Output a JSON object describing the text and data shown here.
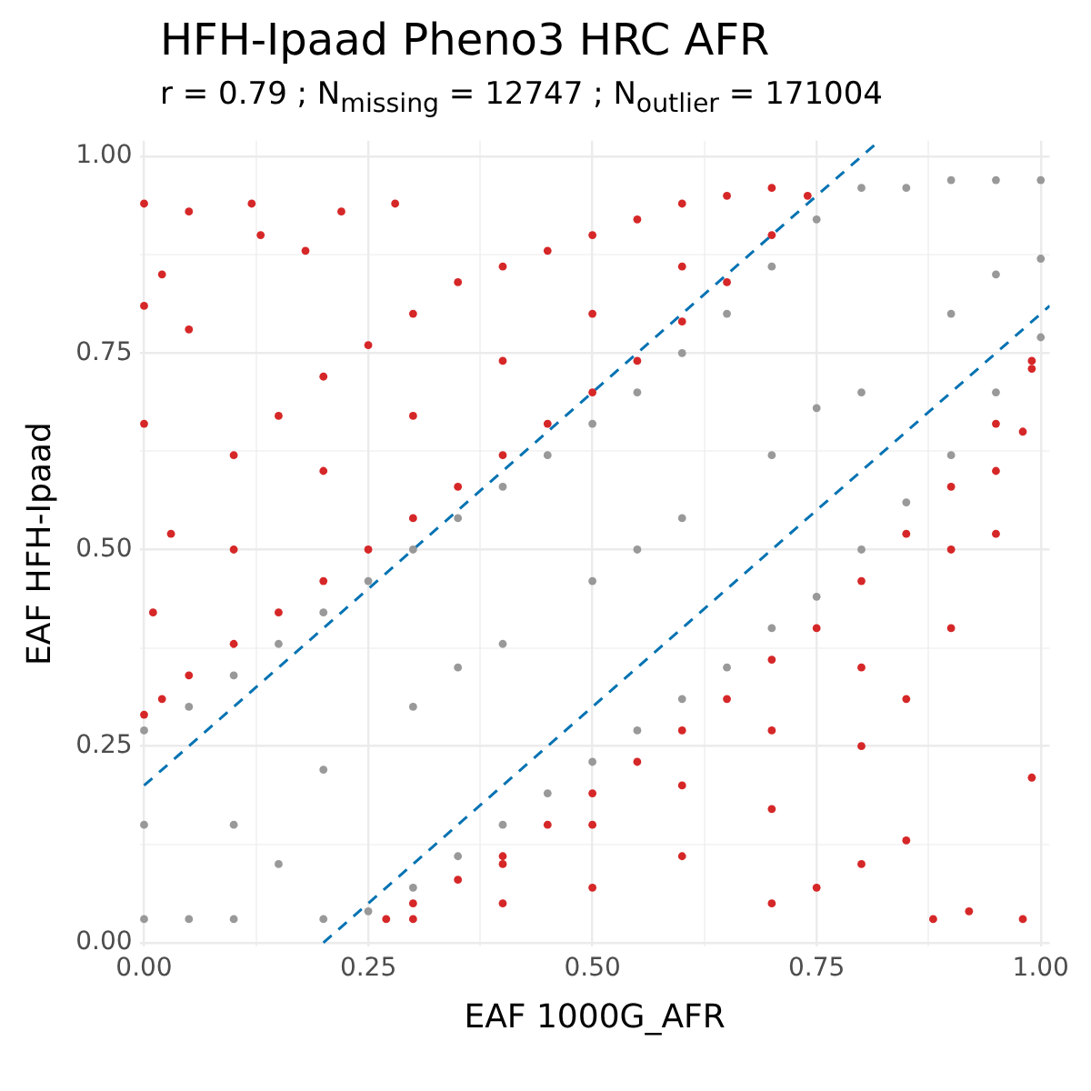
{
  "chart_data": {
    "type": "scatter",
    "title": "HFH-Ipaad Pheno3 HRC AFR",
    "subtitle": "r = 0.79 ; N$_{missing}$ = 12747 ; N$_{outlier}$ = 171004",
    "xlabel": "EAF 1000G_AFR",
    "ylabel": "EAF HFH-Ipaad",
    "xlim": [
      -0.005,
      1.01
    ],
    "ylim": [
      -0.005,
      1.02
    ],
    "xticks": [
      {
        "value": 0,
        "label": "0.00"
      },
      {
        "value": 0.125,
        "label": null
      },
      {
        "value": 0.25,
        "label": "0.25"
      },
      {
        "value": 0.375,
        "label": null
      },
      {
        "value": 0.5,
        "label": "0.50"
      },
      {
        "value": 0.625,
        "label": null
      },
      {
        "value": 0.75,
        "label": "0.75"
      },
      {
        "value": 0.875,
        "label": null
      },
      {
        "value": 1,
        "label": "1.00"
      }
    ],
    "yticks": [
      {
        "value": 0,
        "label": "0.00"
      },
      {
        "value": 0.125,
        "label": null
      },
      {
        "value": 0.25,
        "label": "0.25"
      },
      {
        "value": 0.375,
        "label": null
      },
      {
        "value": 0.5,
        "label": "0.50"
      },
      {
        "value": 0.625,
        "label": null
      },
      {
        "value": 0.75,
        "label": "0.75"
      },
      {
        "value": 0.875,
        "label": null
      },
      {
        "value": 1,
        "label": "1.00"
      }
    ],
    "grid": true,
    "legend": false,
    "marker": "circle",
    "series": [
      {
        "color": "#d62728",
        "x": [
          0,
          0.02,
          0.05,
          0.1,
          0.15,
          0.2,
          0.25,
          0.3,
          0.35,
          0.4,
          0.45,
          0.5,
          0.55,
          0.6,
          0.65,
          0.7,
          0.74,
          0.01,
          0.03,
          0.1,
          0.15,
          0.2,
          0.25,
          0.3,
          0.35,
          0.4,
          0.45,
          0.5,
          0.55,
          0.6,
          0.65,
          0.7,
          0.1,
          0.2,
          0.3,
          0.4,
          0.5,
          0.6,
          0,
          0.05,
          0.12,
          0,
          0,
          0.13,
          0.02,
          0.22,
          0.28,
          0.05,
          0.18
        ],
        "values": [
          0.29,
          0.31,
          0.34,
          0.38,
          0.42,
          0.46,
          0.5,
          0.54,
          0.58,
          0.62,
          0.66,
          0.7,
          0.74,
          0.79,
          0.84,
          0.9,
          0.95,
          0.42,
          0.52,
          0.62,
          0.67,
          0.72,
          0.76,
          0.8,
          0.84,
          0.86,
          0.88,
          0.9,
          0.92,
          0.94,
          0.95,
          0.96,
          0.5,
          0.6,
          0.67,
          0.74,
          0.8,
          0.86,
          0.94,
          0.93,
          0.94,
          0.81,
          0.66,
          0.9,
          0.85,
          0.93,
          0.94,
          0.78,
          0.88
        ]
      },
      {
        "color": "#d62728",
        "x": [
          0.27,
          0.3,
          0.35,
          0.4,
          0.45,
          0.5,
          0.55,
          0.6,
          0.65,
          0.7,
          0.75,
          0.8,
          0.85,
          0.9,
          0.95,
          0.99,
          0.3,
          0.4,
          0.5,
          0.6,
          0.7,
          0.8,
          0.85,
          0.9,
          0.95,
          0.98,
          0.99,
          0.4,
          0.5,
          0.6,
          0.7,
          0.8,
          0.9,
          0.95,
          0.88,
          0.99,
          0.8,
          0.92,
          0.85,
          0.98,
          0.75,
          0.7
        ],
        "values": [
          0.03,
          0.05,
          0.08,
          0.11,
          0.15,
          0.19,
          0.23,
          0.27,
          0.31,
          0.36,
          0.4,
          0.46,
          0.52,
          0.58,
          0.66,
          0.74,
          0.03,
          0.05,
          0.07,
          0.11,
          0.17,
          0.25,
          0.31,
          0.4,
          0.52,
          0.65,
          0.73,
          0.1,
          0.15,
          0.2,
          0.27,
          0.35,
          0.5,
          0.6,
          0.03,
          0.21,
          0.1,
          0.04,
          0.13,
          0.03,
          0.07,
          0.05
        ]
      },
      {
        "color": "#999999",
        "x": [
          0,
          0,
          0,
          0.05,
          0.1,
          0.15,
          0.2,
          0.25,
          0.3,
          0.35,
          0.4,
          0.45,
          0.5,
          0.55,
          0.6,
          0.65,
          0.7,
          0.75,
          0.8,
          0.85,
          0.9,
          0.95,
          1,
          1,
          1,
          0.95,
          0.9,
          0.85,
          0.8,
          0.75,
          0.7,
          0.65,
          0.6,
          0.55,
          0.5,
          0.45,
          0.4,
          0.35,
          0.3,
          0.25,
          0.2,
          0.1,
          0.05,
          0.1,
          0.2,
          0.3,
          0.4,
          0.5,
          0.6,
          0.7,
          0.8,
          0.9,
          0.15,
          0.35,
          0.55,
          0.75,
          0.95
        ],
        "values": [
          0.03,
          0.15,
          0.27,
          0.3,
          0.34,
          0.38,
          0.42,
          0.46,
          0.5,
          0.54,
          0.58,
          0.62,
          0.66,
          0.7,
          0.75,
          0.8,
          0.86,
          0.92,
          0.96,
          0.96,
          0.97,
          0.97,
          0.97,
          0.87,
          0.77,
          0.7,
          0.62,
          0.56,
          0.5,
          0.44,
          0.4,
          0.35,
          0.31,
          0.27,
          0.23,
          0.19,
          0.15,
          0.11,
          0.07,
          0.04,
          0.03,
          0.03,
          0.03,
          0.15,
          0.22,
          0.3,
          0.38,
          0.46,
          0.54,
          0.62,
          0.7,
          0.8,
          0.1,
          0.35,
          0.5,
          0.68,
          0.85
        ]
      },
      {
        "type": "line",
        "line_style": "dashed",
        "marker": "none",
        "color": "#0072b2",
        "x": [
          0,
          0.82
        ],
        "values": [
          0.2,
          1.02
        ]
      },
      {
        "type": "line",
        "line_style": "dashed",
        "marker": "none",
        "color": "#0072b2",
        "x": [
          0.2,
          1.01
        ],
        "values": [
          0,
          0.81
        ]
      }
    ]
  }
}
